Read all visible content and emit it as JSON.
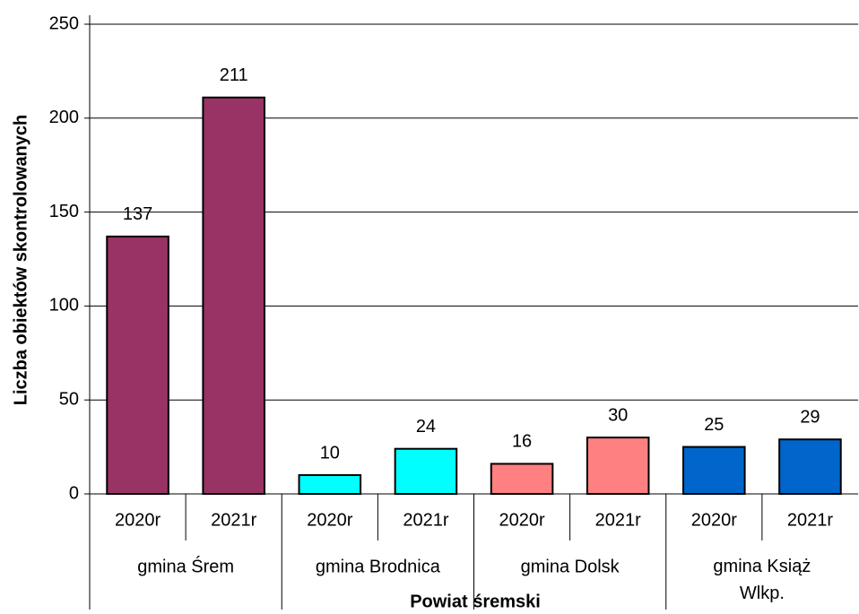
{
  "chart_data": {
    "type": "bar",
    "ylabel": "Liczba obiektów skontrolowanych",
    "xlabel": "Powiat śremski",
    "categories": [
      "2020r",
      "2021r",
      "2020r",
      "2021r",
      "2020r",
      "2021r",
      "2020r",
      "2021r"
    ],
    "groups": [
      "gmina Śrem",
      "gmina Brodnica",
      "gmina Dolsk",
      "gmina Książ\nWlkp."
    ],
    "values": [
      137,
      211,
      10,
      24,
      16,
      30,
      25,
      29
    ],
    "colors": [
      "#993366",
      "#993366",
      "#00ffff",
      "#00ffff",
      "#ff8080",
      "#ff8080",
      "#0066cc",
      "#0066cc"
    ],
    "ylim": [
      0,
      250
    ],
    "yticks": [
      0,
      50,
      100,
      150,
      200,
      250
    ],
    "grid": true
  }
}
